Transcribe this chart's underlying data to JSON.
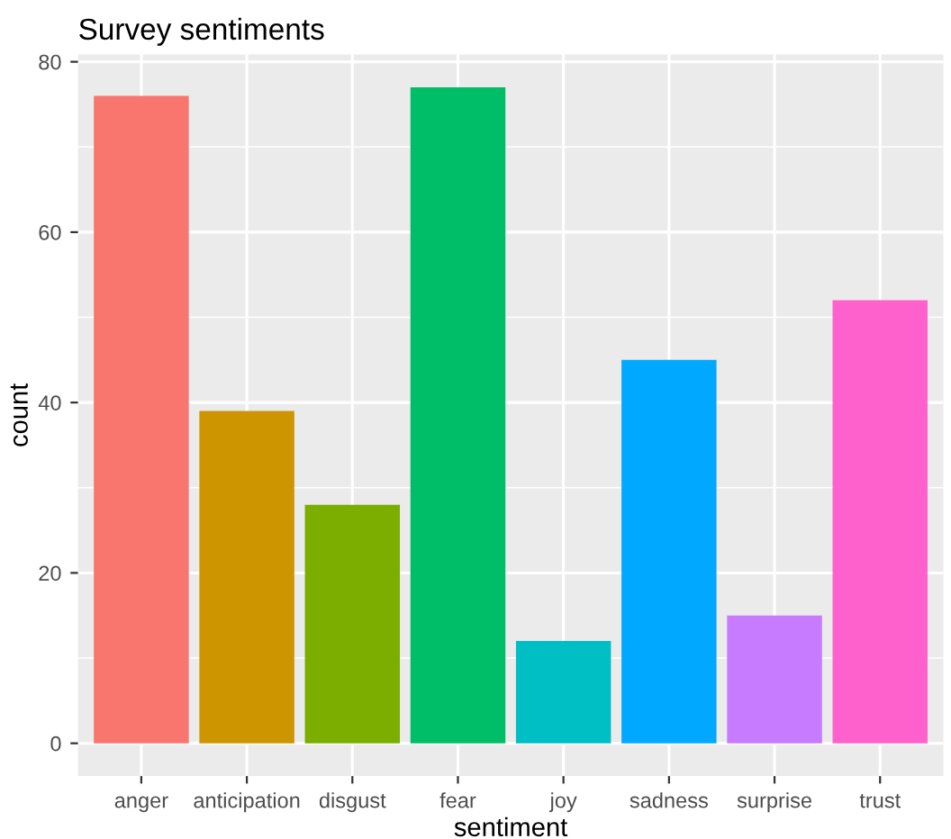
{
  "chart_data": {
    "type": "bar",
    "title": "Survey sentiments",
    "xlabel": "sentiment",
    "ylabel": "count",
    "categories": [
      "anger",
      "anticipation",
      "disgust",
      "fear",
      "joy",
      "sadness",
      "surprise",
      "trust"
    ],
    "values": [
      76,
      39,
      28,
      77,
      12,
      45,
      15,
      52
    ],
    "colors": [
      "#f8766d",
      "#cd9600",
      "#7cae00",
      "#00be67",
      "#00bfc4",
      "#00a9ff",
      "#c77cff",
      "#ff61cc"
    ],
    "ylim": [
      -3.85,
      80.85
    ],
    "yticks": [
      0,
      20,
      40,
      60,
      80
    ],
    "grid": true
  }
}
